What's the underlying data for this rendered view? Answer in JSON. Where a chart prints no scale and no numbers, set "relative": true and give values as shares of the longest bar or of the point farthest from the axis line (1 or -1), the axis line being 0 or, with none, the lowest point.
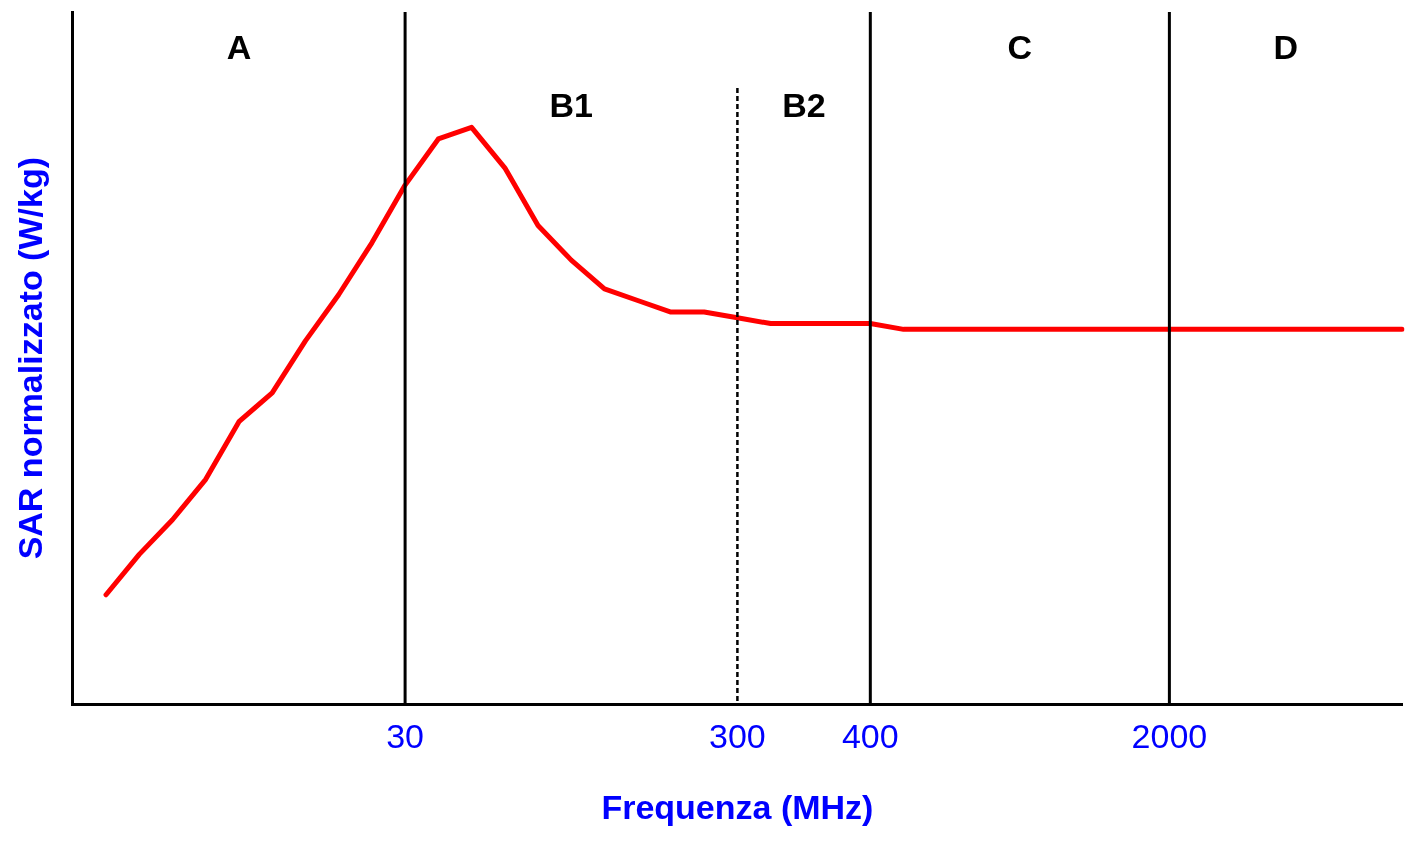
{
  "chart_data": {
    "type": "line",
    "xlabel": "Frequenza (MHz)",
    "ylabel": "SAR normalizzato (W/kg)",
    "relative": true,
    "categories": [
      null,
      null,
      null,
      null,
      null,
      null,
      null,
      null,
      null,
      null,
      "30",
      null,
      null,
      null,
      null,
      null,
      null,
      null,
      null,
      null,
      "300",
      null,
      null,
      null,
      "400",
      null,
      null,
      null,
      null,
      null,
      null,
      null,
      null,
      "2000",
      null,
      null,
      null,
      null,
      null,
      null,
      null
    ],
    "series": [
      {
        "color": "#ff0000",
        "values": [
          null,
          0.19,
          0.26,
          0.32,
          0.39,
          0.49,
          0.54,
          0.63,
          0.71,
          0.8,
          0.9,
          0.98,
          1.0,
          0.93,
          0.83,
          0.77,
          0.72,
          0.7,
          0.68,
          0.68,
          0.67,
          0.66,
          0.66,
          0.66,
          0.66,
          0.65,
          0.65,
          0.65,
          0.65,
          0.65,
          0.65,
          0.65,
          0.65,
          0.65,
          0.65,
          0.65,
          0.65,
          0.65,
          0.65,
          0.65,
          0.65
        ]
      }
    ],
    "grid": false,
    "legend": false,
    "marker": "none",
    "line_style": "solid",
    "ref_lines": [
      {
        "axis": "x",
        "value": "30",
        "color": "#000000",
        "line_style": "solid"
      },
      {
        "axis": "x",
        "value": "300",
        "color": "#000000",
        "line_style": "dashed"
      },
      {
        "axis": "x",
        "value": "400",
        "color": "#000000",
        "line_style": "solid"
      },
      {
        "axis": "x",
        "value": "2000",
        "color": "#000000",
        "line_style": "solid"
      }
    ],
    "annotations": [
      "A",
      "B1",
      "B2",
      "C",
      "D"
    ]
  }
}
